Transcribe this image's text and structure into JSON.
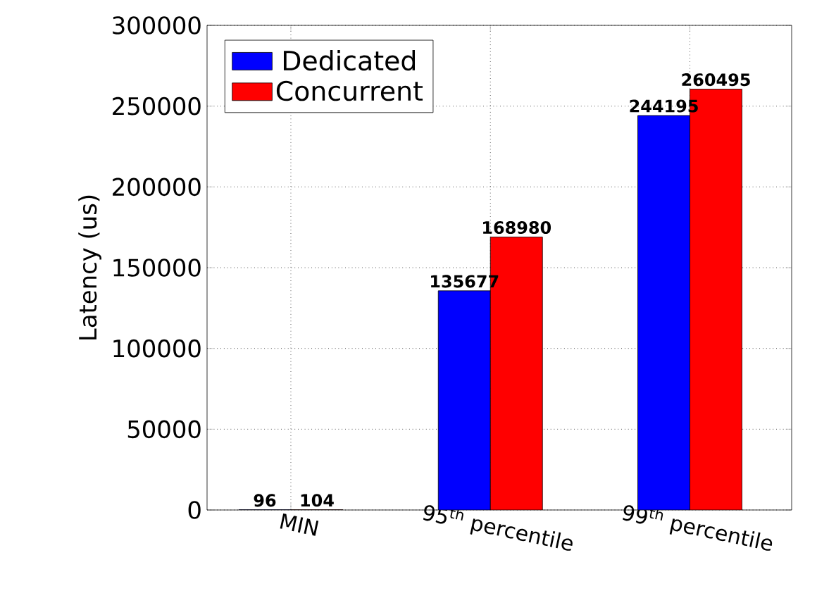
{
  "chart_data": {
    "type": "bar",
    "ylabel": "Latency (us)",
    "categories": [
      "MIN",
      "95$^{th}$ percentile",
      "99$^{th}$ percentile"
    ],
    "series": [
      {
        "name": "Dedicated",
        "color": "#0000ff",
        "values": [
          96,
          135677,
          244195
        ]
      },
      {
        "name": "Concurrent",
        "color": "#ff0000",
        "values": [
          104,
          168980,
          260495
        ]
      }
    ],
    "ylim": [
      0,
      300000
    ],
    "yticks": [
      0,
      50000,
      100000,
      150000,
      200000,
      250000,
      300000
    ],
    "grid": true,
    "legend": "top left",
    "data_labels": true
  }
}
